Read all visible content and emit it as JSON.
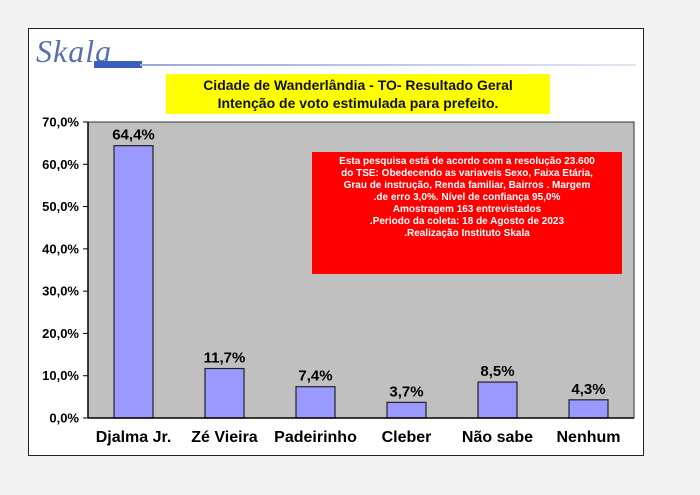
{
  "logo": {
    "text": "Skala",
    "subtitle": "",
    "watermark": ""
  },
  "title": {
    "line1": "Cidade de Wanderlândia - TO- Resultado Geral",
    "line2": "Intenção de voto estimulada para prefeito."
  },
  "note": {
    "lines": [
      "Esta pesquisa está de acordo com a resolução 23.600",
      "do TSE: Obedecendo as variaveis Sexo, Faixa Etária,",
      "Grau de instrução, Renda familiar, Bairros . Margem",
      ".de erro 3,0%. Nível de confiança 95,0%",
      "Amostragem 163  entrevistados",
      ".Periodo da coleta: 18 de Agosto de 2023",
      ".Realização Instituto Skala"
    ]
  },
  "colors": {
    "plot_background": "#c0c0c0",
    "bar_fill": "#9999ff",
    "bar_stroke": "#222222",
    "title_background": "#ffff00",
    "note_background": "#ff0000"
  },
  "chart_data": {
    "type": "bar",
    "title": "Cidade de Wanderlândia - TO- Resultado Geral / Intenção de voto estimulada para prefeito.",
    "categories": [
      "Djalma Jr.",
      "Zé Vieira",
      "Padeirinho",
      "Cleber",
      "Não sabe",
      "Nenhum"
    ],
    "values": [
      64.4,
      11.7,
      7.4,
      3.7,
      8.5,
      4.3
    ],
    "data_labels": [
      "64,4%",
      "11,7%",
      "7,4%",
      "3,7%",
      "8,5%",
      "4,3%"
    ],
    "yticks": [
      0,
      10,
      20,
      30,
      40,
      50,
      60,
      70
    ],
    "ytick_labels": [
      "0,0%",
      "10,0%",
      "20,0%",
      "30,0%",
      "40,0%",
      "50,0%",
      "60,0%",
      "70,0%"
    ],
    "ylim": [
      0,
      70
    ],
    "xlabel": "",
    "ylabel": "",
    "grid": false,
    "legend": "none"
  }
}
